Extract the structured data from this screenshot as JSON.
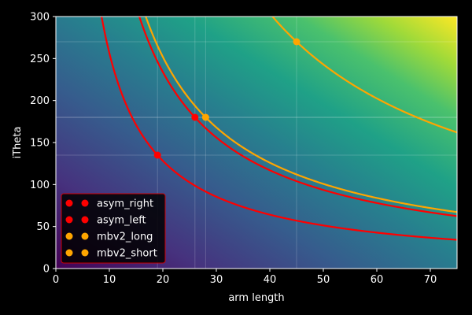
{
  "chart_data": {
    "type": "line",
    "title": "",
    "xlabel": "arm length",
    "ylabel": "iTheta",
    "xlim": [
      0,
      75
    ],
    "ylim": [
      0,
      300
    ],
    "xticks": [
      0,
      10,
      20,
      30,
      40,
      50,
      60,
      70
    ],
    "yticks": [
      0,
      50,
      100,
      150,
      200,
      250,
      300
    ],
    "x_tick_labels": [
      "0",
      "10",
      "20",
      "30",
      "40",
      "50",
      "60",
      "70"
    ],
    "y_tick_labels": [
      "0",
      "50",
      "100",
      "150",
      "200",
      "250",
      "300"
    ],
    "background": "heatmap of arm length × iTheta, viridis colormap (dark purple at lower-left to yellow at upper-right)",
    "grid": "faint reference lines at points",
    "legend_position": "lower-left",
    "series": [
      {
        "name": "asym_right",
        "color": "#ff0000",
        "point": {
          "x": 19,
          "y": 135
        },
        "curve": "y = 2565 / x"
      },
      {
        "name": "asym_left",
        "color": "#ff0000",
        "point": {
          "x": 26,
          "y": 180
        },
        "curve": "y = 4680 / x"
      },
      {
        "name": "mbv2_long",
        "color": "#ffa500",
        "point": {
          "x": 45,
          "y": 270
        },
        "curve": "y = 12150 / x"
      },
      {
        "name": "mbv2_short",
        "color": "#ffa500",
        "point": {
          "x": 28,
          "y": 180
        },
        "curve": "y = 5040 / x"
      }
    ]
  }
}
